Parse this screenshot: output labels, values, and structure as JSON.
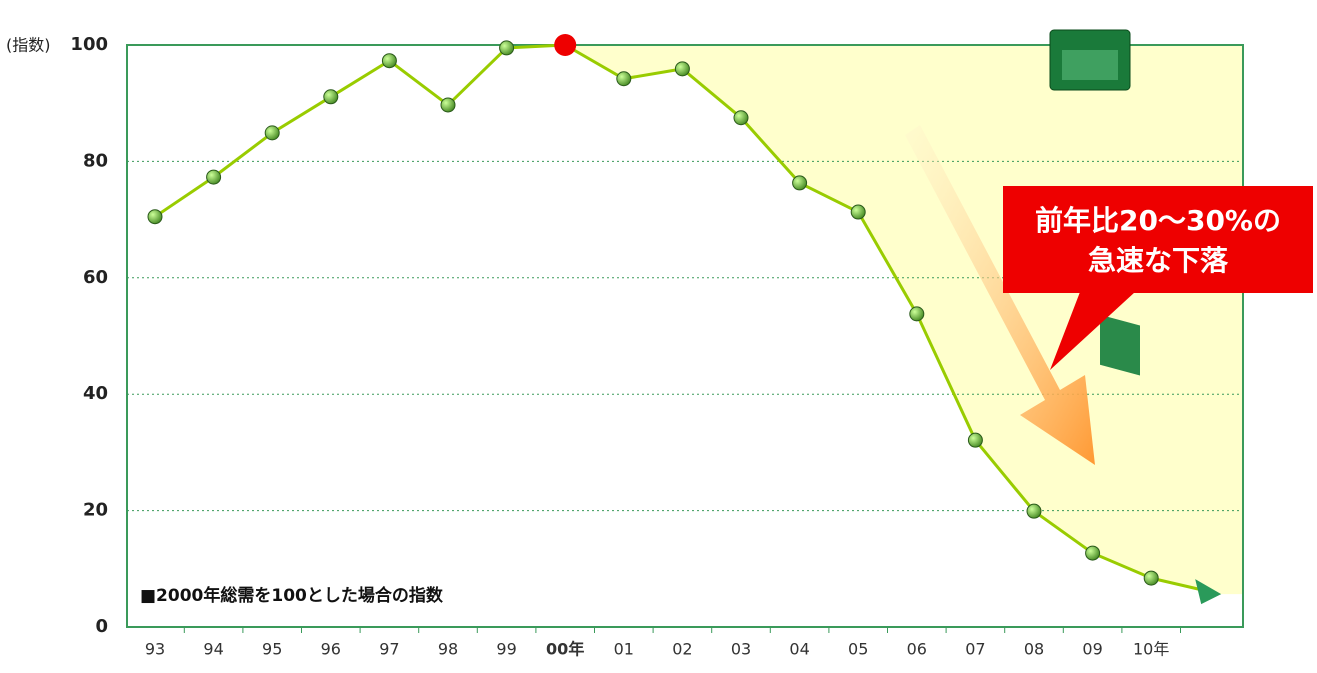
{
  "chart_data": {
    "type": "line",
    "y_label": "(指数)",
    "categories": [
      "93",
      "94",
      "95",
      "96",
      "97",
      "98",
      "99",
      "00年",
      "01",
      "02",
      "03",
      "04",
      "05",
      "06",
      "07",
      "08",
      "09",
      "10年"
    ],
    "series": [
      {
        "name": "指数",
        "color": "#99cc00",
        "marker_color": "#55aa33",
        "values": [
          70.5,
          77.3,
          84.9,
          91.1,
          97.3,
          89.7,
          99.5,
          100,
          94.2,
          95.9,
          87.5,
          76.3,
          71.3,
          53.8,
          32.1,
          19.9,
          12.7,
          8.4
        ]
      }
    ],
    "highlight_index": 7,
    "highlight_color": "#ee0000",
    "ylim": [
      0,
      100
    ],
    "yticks": [
      0,
      20,
      40,
      60,
      80,
      100
    ],
    "grid": true,
    "annotations": [
      "■2000年総需を100とした場合の指数"
    ],
    "callout": [
      "前年比20～30%の",
      "急速な下落"
    ]
  }
}
